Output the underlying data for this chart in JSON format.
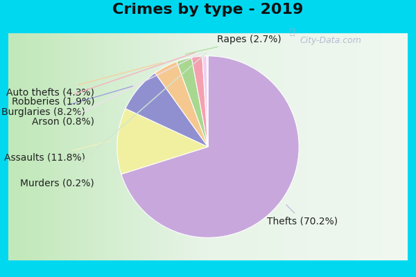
{
  "title": "Crimes by type - 2019",
  "labels": [
    "Thefts",
    "Assaults",
    "Burglaries",
    "Auto thefts",
    "Rapes",
    "Robberies",
    "Arson",
    "Murders"
  ],
  "percentages": [
    70.2,
    11.8,
    8.2,
    4.3,
    2.7,
    1.9,
    0.8,
    0.2
  ],
  "colors": [
    "#c8a8dc",
    "#f0f0a0",
    "#9090d0",
    "#f5c890",
    "#a8d890",
    "#f5a0b0",
    "#f0d0f0",
    "#c8e8c8"
  ],
  "line_colors": [
    "#c0c0e0",
    "#f0f0c0",
    "#a0a0e0",
    "#f5d0a0",
    "#b0e0a0",
    "#f8b0c0",
    "#f0e0f0",
    "#d0e8d0"
  ],
  "background_top": "#00d8f0",
  "background_inner_left": "#c8e8c0",
  "background_inner_right": "#e8f4e8",
  "title_fontsize": 16,
  "label_fontsize": 10,
  "watermark": "City-Data.com"
}
